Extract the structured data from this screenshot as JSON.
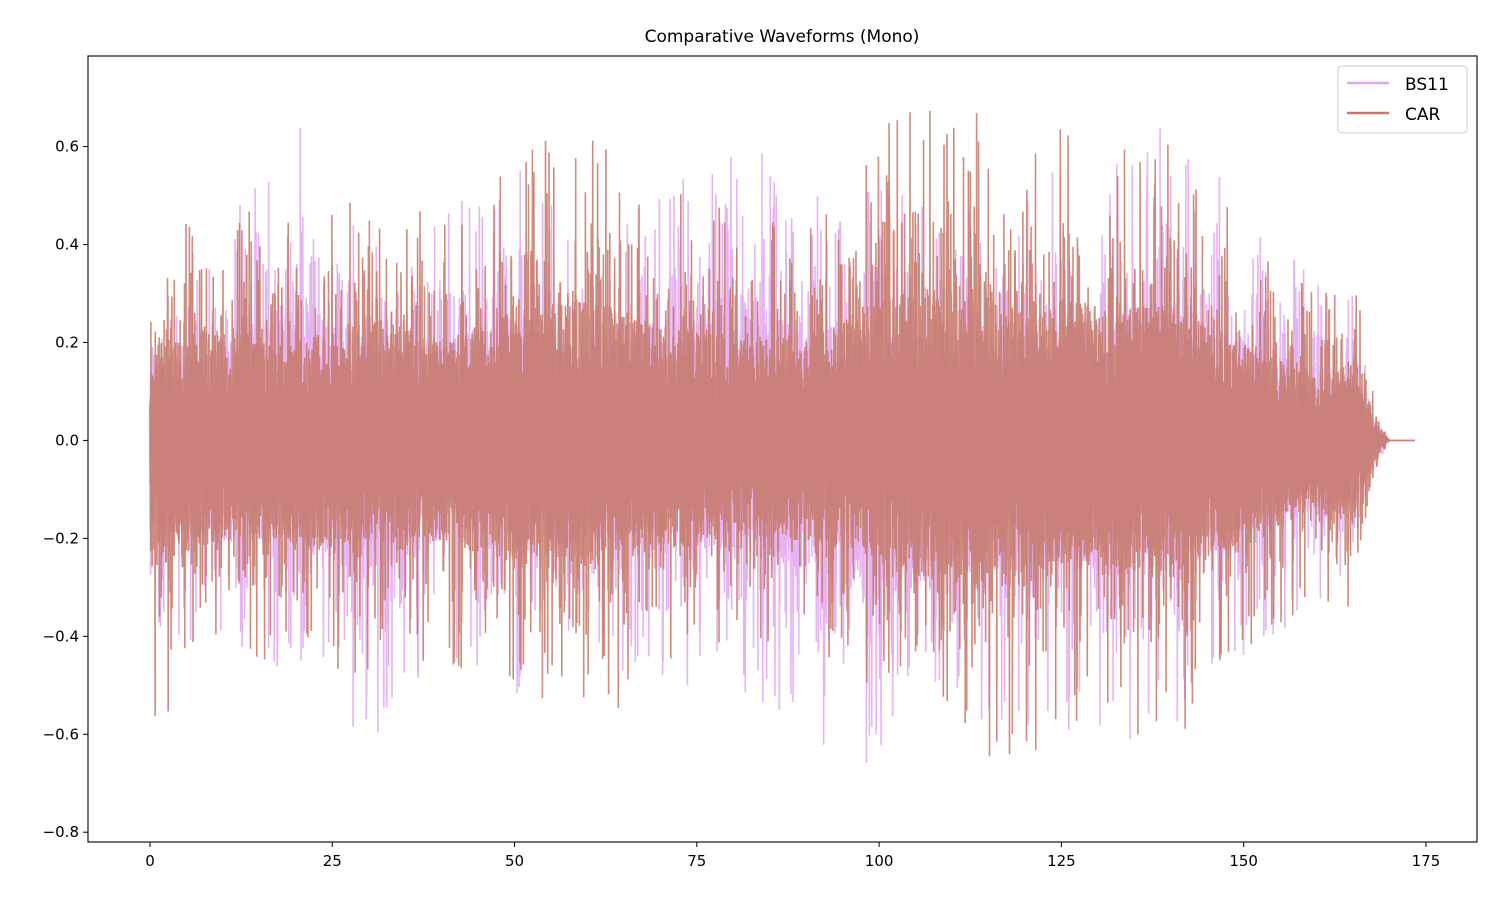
{
  "chart_data": {
    "type": "line",
    "title": "Comparative Waveforms (Mono)",
    "xlabel": "",
    "ylabel": "",
    "xlim": [
      -8.5,
      182
    ],
    "ylim": [
      -0.82,
      0.785
    ],
    "xticks": [
      0,
      25,
      50,
      75,
      100,
      125,
      150,
      175
    ],
    "xtick_labels": [
      "0",
      "25",
      "50",
      "75",
      "100",
      "125",
      "150",
      "175"
    ],
    "yticks": [
      -0.8,
      -0.6,
      -0.4,
      -0.2,
      0.0,
      0.2,
      0.4,
      0.6
    ],
    "ytick_labels": [
      "−0.8",
      "−0.6",
      "−0.4",
      "−0.2",
      "0.0",
      "0.2",
      "0.4",
      "0.6"
    ],
    "grid": false,
    "legend": "top-right",
    "series": [
      {
        "name": "BS11",
        "color": "#e2a6f0",
        "x": [
          0,
          10,
          20,
          30,
          40,
          50,
          60,
          70,
          80,
          90,
          100,
          110,
          120,
          130,
          140,
          150,
          160,
          165,
          168,
          170,
          173.5
        ],
        "peak_max": [
          0.35,
          0.43,
          0.69,
          0.45,
          0.47,
          0.58,
          0.47,
          0.54,
          0.71,
          0.52,
          0.52,
          0.47,
          0.56,
          0.55,
          0.66,
          0.48,
          0.33,
          0.3,
          0.1,
          0.0,
          0.0
        ],
        "peak_min": [
          -0.41,
          -0.47,
          -0.47,
          -0.64,
          -0.45,
          -0.53,
          -0.45,
          -0.52,
          -0.5,
          -0.59,
          -0.75,
          -0.6,
          -0.6,
          -0.63,
          -0.59,
          -0.45,
          -0.35,
          -0.3,
          -0.1,
          0.0,
          0.0
        ]
      },
      {
        "name": "CAR",
        "color": "#c47866",
        "x": [
          0,
          10,
          20,
          30,
          40,
          50,
          60,
          70,
          80,
          90,
          100,
          110,
          120,
          130,
          140,
          150,
          160,
          165,
          168,
          170,
          173.5
        ],
        "peak_max": [
          0.47,
          0.52,
          0.44,
          0.57,
          0.45,
          0.59,
          0.65,
          0.53,
          0.49,
          0.46,
          0.65,
          0.71,
          0.68,
          0.61,
          0.61,
          0.44,
          0.3,
          0.35,
          0.1,
          0.0,
          0.0
        ],
        "peak_min": [
          -0.6,
          -0.45,
          -0.5,
          -0.47,
          -0.46,
          -0.56,
          -0.57,
          -0.52,
          -0.43,
          -0.46,
          -0.55,
          -0.69,
          -0.67,
          -0.57,
          -0.63,
          -0.44,
          -0.33,
          -0.4,
          -0.1,
          0.0,
          0.0
        ]
      }
    ]
  }
}
